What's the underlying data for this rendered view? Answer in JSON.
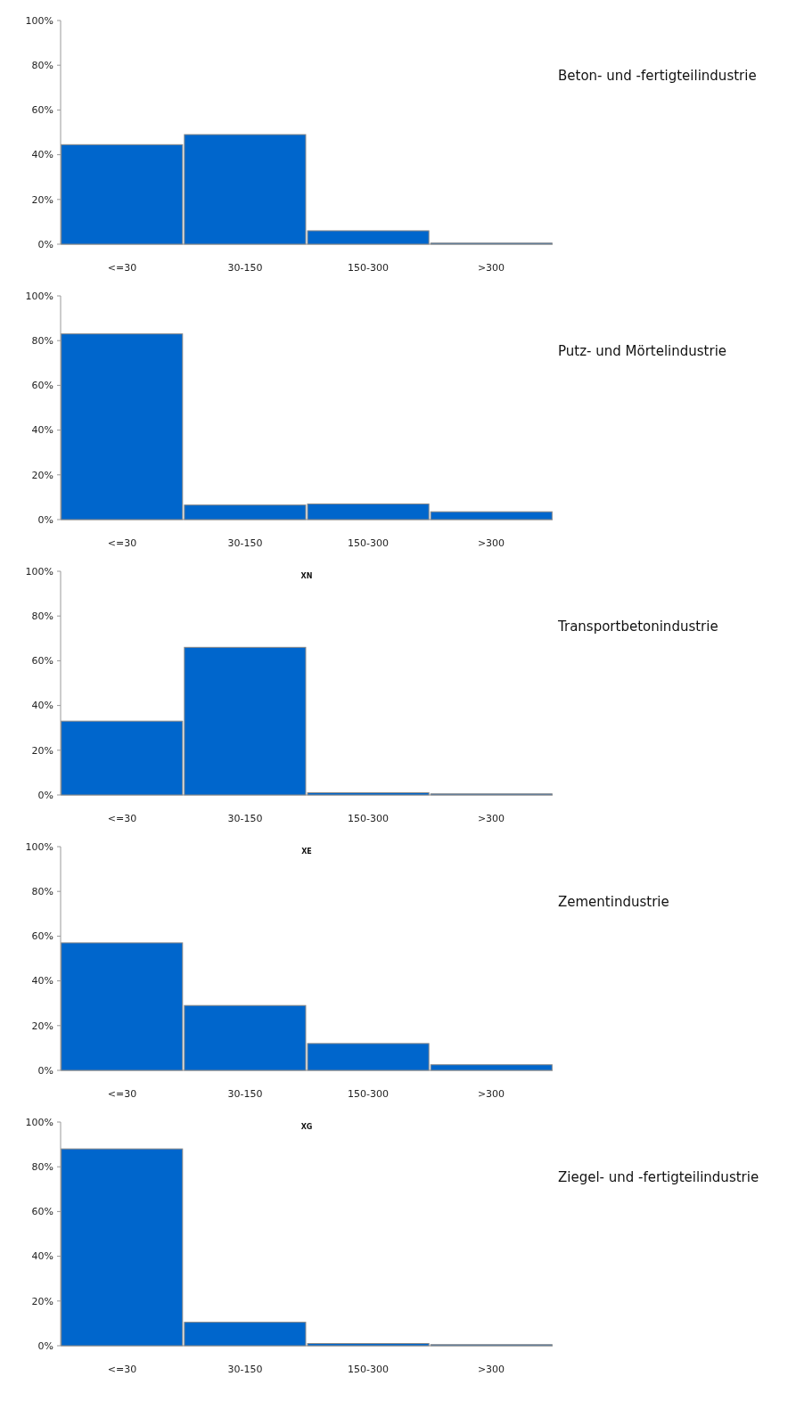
{
  "chart_data": [
    {
      "type": "bar",
      "annotations": [
        "Beton- und -fertigteilindustrie"
      ],
      "categories": [
        "<=30",
        "30-150",
        "150-300",
        ">300"
      ],
      "values": [
        44.5,
        49,
        6,
        0.5
      ],
      "color": "#0066cc",
      "ylim": [
        0,
        100
      ],
      "yticks": [
        {
          "value": 0,
          "label": "0%"
        },
        {
          "value": 20,
          "label": "20%"
        },
        {
          "value": 40,
          "label": "40%"
        },
        {
          "value": 60,
          "label": "60%"
        },
        {
          "value": 80,
          "label": "80%"
        },
        {
          "value": 100,
          "label": "100%"
        }
      ],
      "grid": false
    },
    {
      "type": "bar",
      "annotations": [
        "Putz- und Mörtelindustrie"
      ],
      "categories": [
        "<=30",
        "30-150",
        "150-300",
        ">300"
      ],
      "values": [
        83,
        6.5,
        7,
        3.5
      ],
      "color": "#0066cc",
      "ylim": [
        0,
        100
      ],
      "yticks": [
        {
          "value": 0,
          "label": "0%"
        },
        {
          "value": 20,
          "label": "20%"
        },
        {
          "value": 40,
          "label": "40%"
        },
        {
          "value": 60,
          "label": "60%"
        },
        {
          "value": 80,
          "label": "80%"
        },
        {
          "value": 100,
          "label": "100%"
        }
      ],
      "grid": false
    },
    {
      "type": "bar",
      "title": "XN",
      "annotations": [
        "Transportbetonindustrie"
      ],
      "categories": [
        "<=30",
        "30-150",
        "150-300",
        ">300"
      ],
      "values": [
        33,
        66,
        1,
        0.5
      ],
      "color": "#0066cc",
      "ylim": [
        0,
        100
      ],
      "yticks": [
        {
          "value": 0,
          "label": "0%"
        },
        {
          "value": 20,
          "label": "20%"
        },
        {
          "value": 40,
          "label": "40%"
        },
        {
          "value": 60,
          "label": "60%"
        },
        {
          "value": 80,
          "label": "80%"
        },
        {
          "value": 100,
          "label": "100%"
        }
      ],
      "grid": false
    },
    {
      "type": "bar",
      "title": "XE",
      "annotations": [
        "Zementindustrie"
      ],
      "categories": [
        "<=30",
        "30-150",
        "150-300",
        ">300"
      ],
      "values": [
        57,
        29,
        12,
        2.5
      ],
      "color": "#0066cc",
      "ylim": [
        0,
        100
      ],
      "yticks": [
        {
          "value": 0,
          "label": "0%"
        },
        {
          "value": 20,
          "label": "20%"
        },
        {
          "value": 40,
          "label": "40%"
        },
        {
          "value": 60,
          "label": "60%"
        },
        {
          "value": 80,
          "label": "80%"
        },
        {
          "value": 100,
          "label": "100%"
        }
      ],
      "grid": false
    },
    {
      "type": "bar",
      "title": "XG",
      "annotations": [
        "Ziegel- und -fertigteilindustrie"
      ],
      "categories": [
        "<=30",
        "30-150",
        "150-300",
        ">300"
      ],
      "values": [
        88,
        10.5,
        1,
        0.5
      ],
      "color": "#0066cc",
      "ylim": [
        0,
        100
      ],
      "yticks": [
        {
          "value": 0,
          "label": "0%"
        },
        {
          "value": 20,
          "label": "20%"
        },
        {
          "value": 40,
          "label": "40%"
        },
        {
          "value": 60,
          "label": "60%"
        },
        {
          "value": 80,
          "label": "80%"
        },
        {
          "value": 100,
          "label": "100%"
        }
      ],
      "grid": false
    }
  ]
}
